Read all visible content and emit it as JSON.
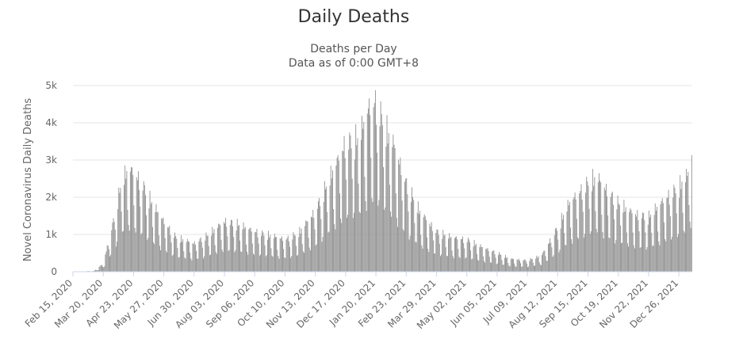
{
  "chart_data": {
    "type": "bar",
    "title": "Daily Deaths",
    "subtitle_lines": [
      "Deaths per Day",
      "Data as of 0:00 GMT+8"
    ],
    "ylabel": "Novel Coronavirus Daily Deaths",
    "xlabel": "",
    "ylim": [
      0,
      5000
    ],
    "y_ticks": [
      {
        "value": 0,
        "label": "0"
      },
      {
        "value": 1000,
        "label": "1k"
      },
      {
        "value": 2000,
        "label": "2k"
      },
      {
        "value": 3000,
        "label": "3k"
      },
      {
        "value": 4000,
        "label": "4k"
      },
      {
        "value": 5000,
        "label": "5k"
      }
    ],
    "x_start": "2020-02-15",
    "x_end": "2022-01-10",
    "x_tick_labels": [
      {
        "date": "2020-02-15",
        "label": "Feb 15, 2020"
      },
      {
        "date": "2020-03-20",
        "label": "Mar 20, 2020"
      },
      {
        "date": "2020-04-23",
        "label": "Apr 23, 2020"
      },
      {
        "date": "2020-05-27",
        "label": "May 27, 2020"
      },
      {
        "date": "2020-06-30",
        "label": "Jun 30, 2020"
      },
      {
        "date": "2020-08-03",
        "label": "Aug 03, 2020"
      },
      {
        "date": "2020-09-06",
        "label": "Sep 06, 2020"
      },
      {
        "date": "2020-10-10",
        "label": "Oct 10, 2020"
      },
      {
        "date": "2020-11-13",
        "label": "Nov 13, 2020"
      },
      {
        "date": "2020-12-17",
        "label": "Dec 17, 2020"
      },
      {
        "date": "2021-01-20",
        "label": "Jan 20, 2021"
      },
      {
        "date": "2021-02-23",
        "label": "Feb 23, 2021"
      },
      {
        "date": "2021-03-29",
        "label": "Mar 29, 2021"
      },
      {
        "date": "2021-05-02",
        "label": "May 02, 2021"
      },
      {
        "date": "2021-06-05",
        "label": "Jun 05, 2021"
      },
      {
        "date": "2021-07-09",
        "label": "Jul 09, 2021"
      },
      {
        "date": "2021-08-12",
        "label": "Aug 12, 2021"
      },
      {
        "date": "2021-09-15",
        "label": "Sep 15, 2021"
      },
      {
        "date": "2021-10-19",
        "label": "Oct 19, 2021"
      },
      {
        "date": "2021-11-22",
        "label": "Nov 22, 2021"
      },
      {
        "date": "2021-12-26",
        "label": "Dec 26, 2021"
      }
    ],
    "trend_points": [
      {
        "date": "2020-02-15",
        "value": 0
      },
      {
        "date": "2020-03-10",
        "value": 20
      },
      {
        "date": "2020-03-20",
        "value": 200
      },
      {
        "date": "2020-04-01",
        "value": 1300
      },
      {
        "date": "2020-04-10",
        "value": 2250
      },
      {
        "date": "2020-04-18",
        "value": 2550
      },
      {
        "date": "2020-04-23",
        "value": 2450
      },
      {
        "date": "2020-05-01",
        "value": 2250
      },
      {
        "date": "2020-05-15",
        "value": 1650
      },
      {
        "date": "2020-05-27",
        "value": 1250
      },
      {
        "date": "2020-06-10",
        "value": 850
      },
      {
        "date": "2020-06-30",
        "value": 700
      },
      {
        "date": "2020-07-15",
        "value": 900
      },
      {
        "date": "2020-08-03",
        "value": 1250
      },
      {
        "date": "2020-08-15",
        "value": 1200
      },
      {
        "date": "2020-09-06",
        "value": 1000
      },
      {
        "date": "2020-10-10",
        "value": 800
      },
      {
        "date": "2020-10-25",
        "value": 950
      },
      {
        "date": "2020-11-13",
        "value": 1500
      },
      {
        "date": "2020-12-01",
        "value": 2400
      },
      {
        "date": "2020-12-17",
        "value": 3200
      },
      {
        "date": "2021-01-01",
        "value": 3300
      },
      {
        "date": "2021-01-12",
        "value": 4050
      },
      {
        "date": "2021-01-20",
        "value": 4200
      },
      {
        "date": "2021-02-01",
        "value": 3500
      },
      {
        "date": "2021-02-10",
        "value": 3100
      },
      {
        "date": "2021-02-23",
        "value": 2200
      },
      {
        "date": "2021-03-10",
        "value": 1500
      },
      {
        "date": "2021-03-29",
        "value": 1000
      },
      {
        "date": "2021-04-15",
        "value": 850
      },
      {
        "date": "2021-05-02",
        "value": 800
      },
      {
        "date": "2021-05-20",
        "value": 600
      },
      {
        "date": "2021-06-05",
        "value": 470
      },
      {
        "date": "2021-06-20",
        "value": 320
      },
      {
        "date": "2021-07-09",
        "value": 280
      },
      {
        "date": "2021-07-25",
        "value": 400
      },
      {
        "date": "2021-08-12",
        "value": 1100
      },
      {
        "date": "2021-08-25",
        "value": 1700
      },
      {
        "date": "2021-09-15",
        "value": 2200
      },
      {
        "date": "2021-09-25",
        "value": 2350
      },
      {
        "date": "2021-10-05",
        "value": 2050
      },
      {
        "date": "2021-10-19",
        "value": 1700
      },
      {
        "date": "2021-11-05",
        "value": 1450
      },
      {
        "date": "2021-11-22",
        "value": 1350
      },
      {
        "date": "2021-12-10",
        "value": 1800
      },
      {
        "date": "2021-12-26",
        "value": 2100
      },
      {
        "date": "2022-01-05",
        "value": 2400
      },
      {
        "date": "2022-01-09",
        "value": 2900
      }
    ],
    "bar_color": "#909090",
    "grid": true,
    "legend": "none"
  }
}
